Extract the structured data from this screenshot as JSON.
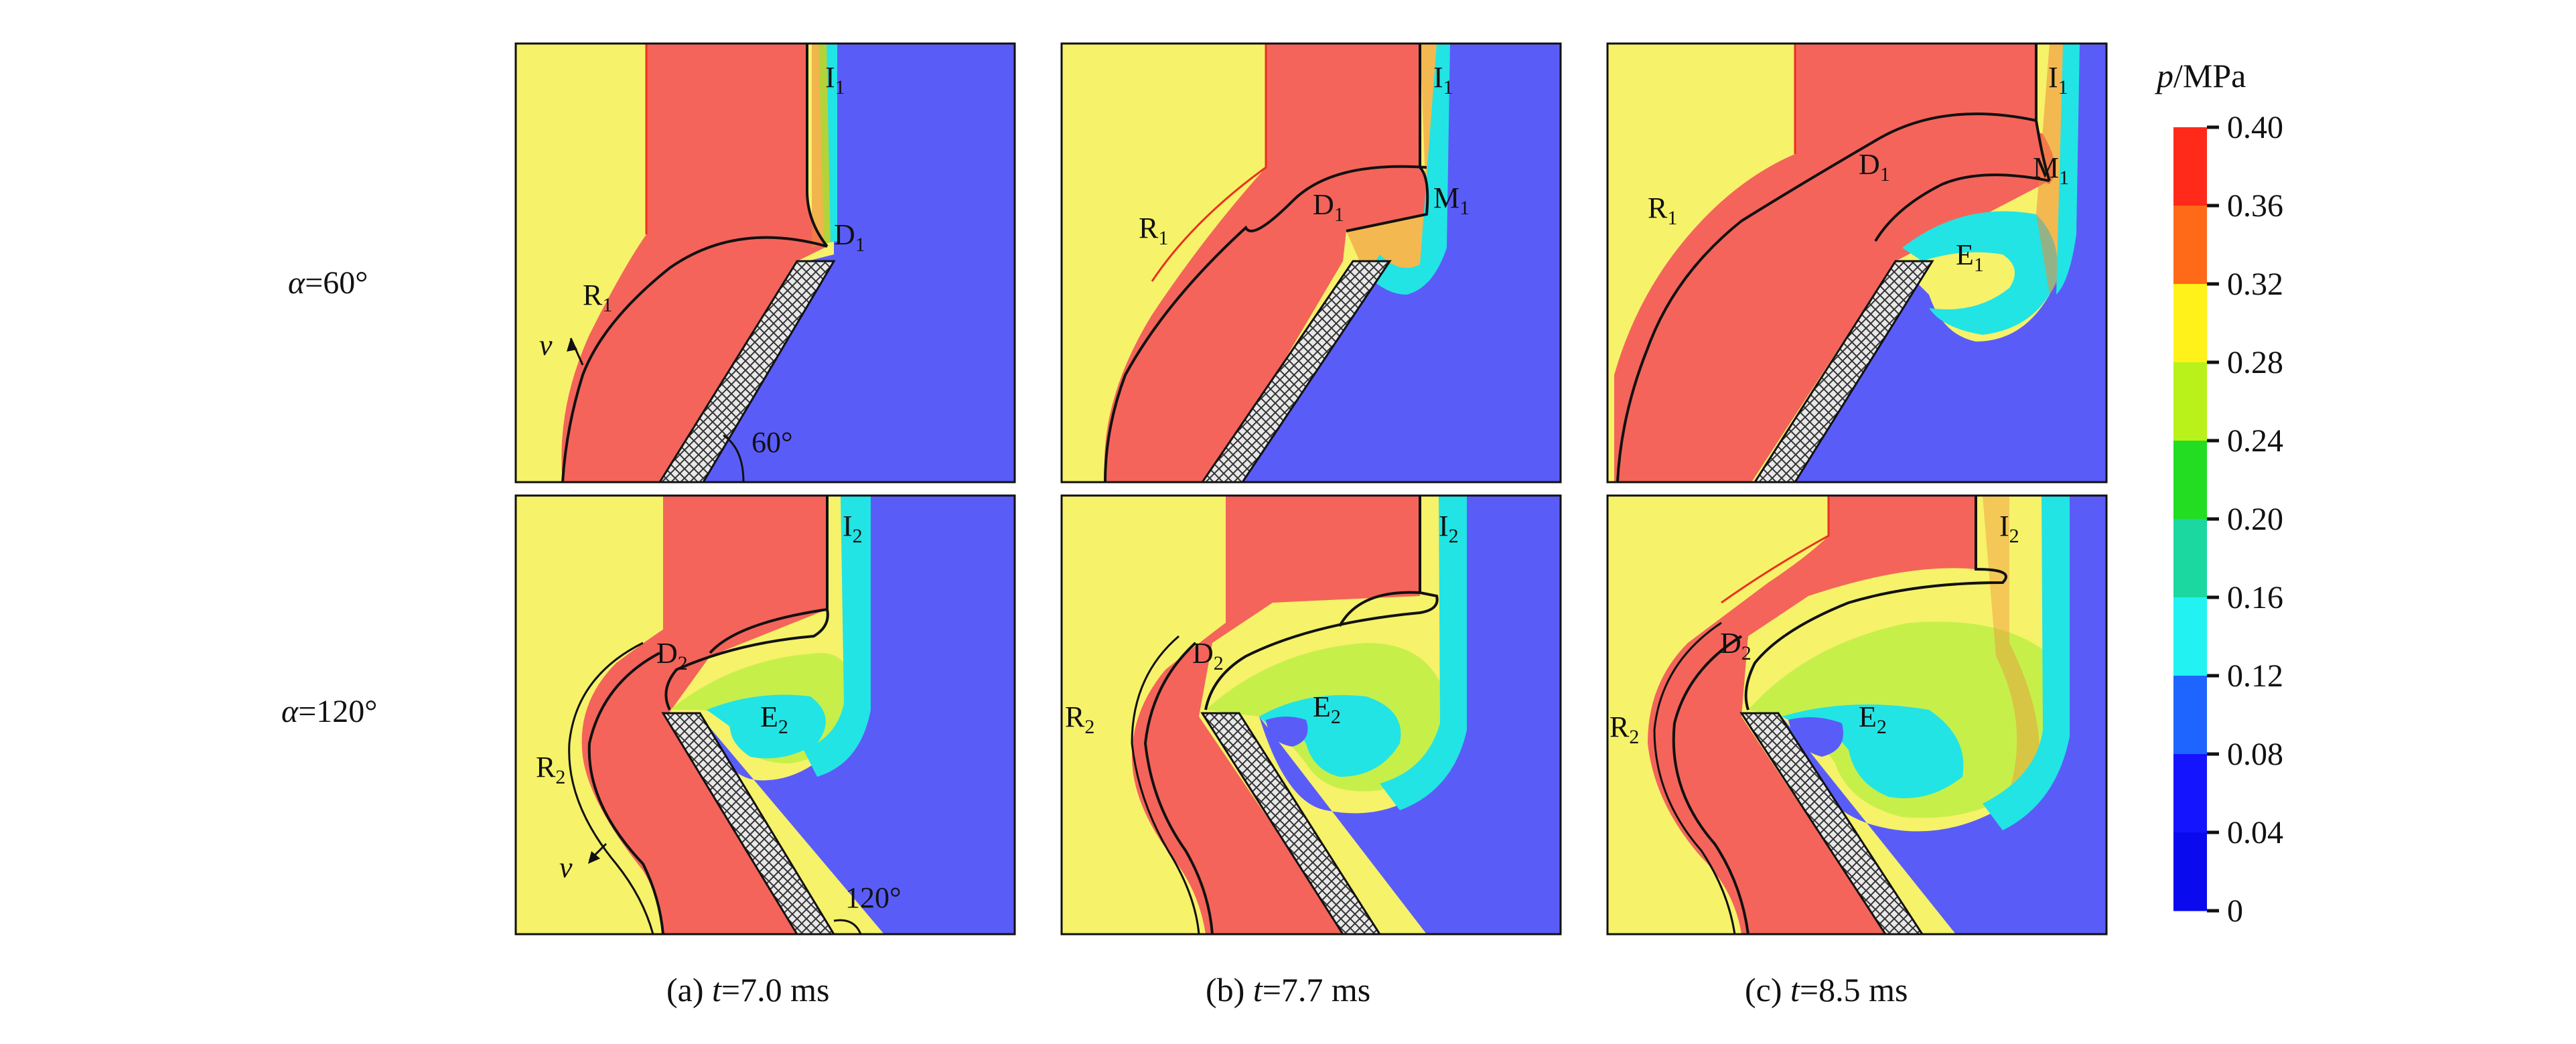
{
  "rows": [
    {
      "label_prefix": "α",
      "label_value": "=60°"
    },
    {
      "label_prefix": "α",
      "label_value": "=120°"
    }
  ],
  "columns": [
    {
      "tag": "(a)",
      "t_var": "t",
      "t_value": "=7.0 ms"
    },
    {
      "tag": "(b)",
      "t_var": "t",
      "t_value": "=7.7 ms"
    },
    {
      "tag": "(c)",
      "t_var": "t",
      "t_value": "=8.5 ms"
    }
  ],
  "panel_labels": {
    "r0c0": {
      "I": "I1",
      "D": "D1",
      "R": "R1",
      "v": "v",
      "angle": "60°"
    },
    "r0c1": {
      "I": "I1",
      "M": "M1",
      "D": "D1",
      "R": "R1"
    },
    "r0c2": {
      "I": "I1",
      "M": "M1",
      "D": "D1",
      "E": "E1",
      "R": "R1"
    },
    "r1c0": {
      "I": "I2",
      "D": "D2",
      "E": "E2",
      "R": "R2",
      "v": "v",
      "angle": "120°"
    },
    "r1c1": {
      "I": "I2",
      "D": "D2",
      "E": "E2",
      "R": "R2"
    },
    "r1c2": {
      "I": "I2",
      "D": "D2",
      "E": "E2",
      "R": "R2"
    }
  },
  "colorbar": {
    "title_var": "p",
    "title_unit": "/MPa",
    "ticks": [
      "0.40",
      "0.36",
      "0.32",
      "0.28",
      "0.24",
      "0.20",
      "0.16",
      "0.12",
      "0.08",
      "0.04",
      "0"
    ],
    "colors": [
      "#ff2a1a",
      "#ff6a18",
      "#fff21a",
      "#b8f21a",
      "#22dd22",
      "#1ad8a0",
      "#22f2f2",
      "#1e64ff",
      "#1414ff",
      "#0a0aee"
    ]
  },
  "colors": {
    "ambient": "#f6f26a",
    "high_pressure": "#f4645a",
    "low_pressure": "#5a5cf8",
    "contour": "#111111",
    "plate_fill": "#d4d4d4"
  }
}
